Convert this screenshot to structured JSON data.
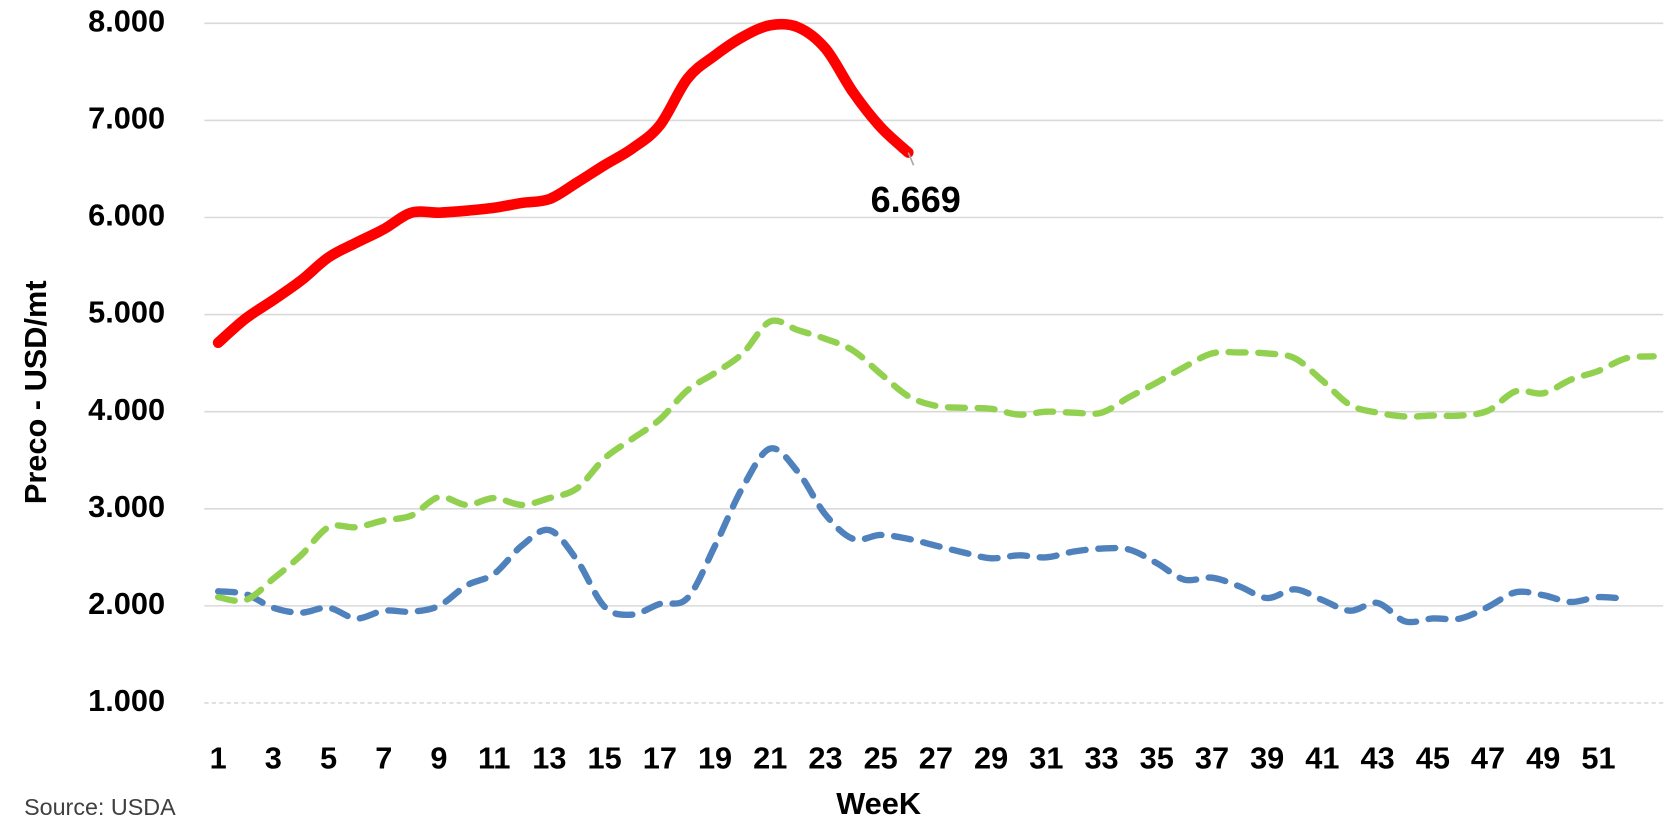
{
  "chart_data": {
    "type": "line",
    "y_axis_label": "Preco - USD/mt",
    "x_axis_label": "WeeK",
    "source": "Source: USDA",
    "categories": [
      1,
      null,
      3,
      null,
      5,
      null,
      7,
      null,
      9,
      null,
      11,
      null,
      13,
      null,
      15,
      null,
      17,
      null,
      19,
      null,
      21,
      null,
      23,
      null,
      25,
      null,
      27,
      null,
      29,
      null,
      31,
      null,
      33,
      null,
      35,
      null,
      37,
      null,
      39,
      null,
      41,
      null,
      43,
      null,
      45,
      null,
      47,
      null,
      49,
      null,
      51,
      null,
      null
    ],
    "ylim": [
      1000,
      8000
    ],
    "yticks": [
      {
        "value": 1000,
        "label": "1.000"
      },
      {
        "value": 2000,
        "label": "2.000"
      },
      {
        "value": 3000,
        "label": "3.000"
      },
      {
        "value": 4000,
        "label": "4.000"
      },
      {
        "value": 5000,
        "label": "5.000"
      },
      {
        "value": 6000,
        "label": "6.000"
      },
      {
        "value": 7000,
        "label": "7.000"
      },
      {
        "value": 8000,
        "label": "8.000"
      }
    ],
    "grid": true,
    "series": [
      {
        "color": "#4f81bd",
        "style": "dashed",
        "values": [
          2150,
          2120,
          1980,
          1930,
          1980,
          1870,
          1950,
          1940,
          2000,
          2210,
          2330,
          2620,
          2780,
          2470,
          1990,
          1910,
          2020,
          2080,
          2620,
          3220,
          3620,
          3380,
          2940,
          2690,
          2730,
          2690,
          2620,
          2550,
          2490,
          2520,
          2500,
          2560,
          2590,
          2580,
          2440,
          2270,
          2290,
          2200,
          2080,
          2170,
          2060,
          1950,
          2030,
          1840,
          1870,
          1870,
          1990,
          2140,
          2110,
          2040,
          2090,
          2070,
          null
        ]
      },
      {
        "color": "#92d050",
        "style": "dashed",
        "values": [
          2090,
          2060,
          2280,
          2520,
          2810,
          2810,
          2880,
          2930,
          3120,
          3040,
          3110,
          3040,
          3110,
          3210,
          3520,
          3720,
          3920,
          4220,
          4400,
          4600,
          4930,
          4840,
          4750,
          4630,
          4390,
          4160,
          4060,
          4040,
          4030,
          3970,
          4000,
          3990,
          3990,
          4150,
          4300,
          4460,
          4600,
          4610,
          4600,
          4550,
          4320,
          4070,
          3990,
          3950,
          3960,
          3960,
          4010,
          4210,
          4190,
          4330,
          4420,
          4550,
          4570
        ]
      },
      {
        "color": "#ff0000",
        "style": "solid",
        "values": [
          4710,
          4960,
          5150,
          5350,
          5590,
          5740,
          5880,
          6050,
          6050,
          6070,
          6100,
          6150,
          6190,
          6360,
          6540,
          6710,
          6950,
          7430,
          7670,
          7860,
          7980,
          7960,
          7740,
          7290,
          6930,
          6669,
          null,
          null,
          null,
          null,
          null,
          null,
          null,
          null,
          null,
          null,
          null,
          null,
          null,
          null,
          null,
          null,
          null,
          null,
          null,
          null,
          null,
          null,
          null,
          null,
          null,
          null,
          null
        ],
        "value_labels": [
          null,
          null,
          null,
          null,
          null,
          null,
          null,
          null,
          null,
          null,
          null,
          null,
          null,
          null,
          null,
          null,
          null,
          null,
          null,
          null,
          null,
          null,
          null,
          null,
          null,
          "6.669",
          null,
          null,
          null,
          null,
          null,
          null,
          null,
          null,
          null,
          null,
          null,
          null,
          null,
          null,
          null,
          null,
          null,
          null,
          null,
          null,
          null,
          null,
          null,
          null,
          null,
          null,
          null
        ]
      }
    ]
  }
}
